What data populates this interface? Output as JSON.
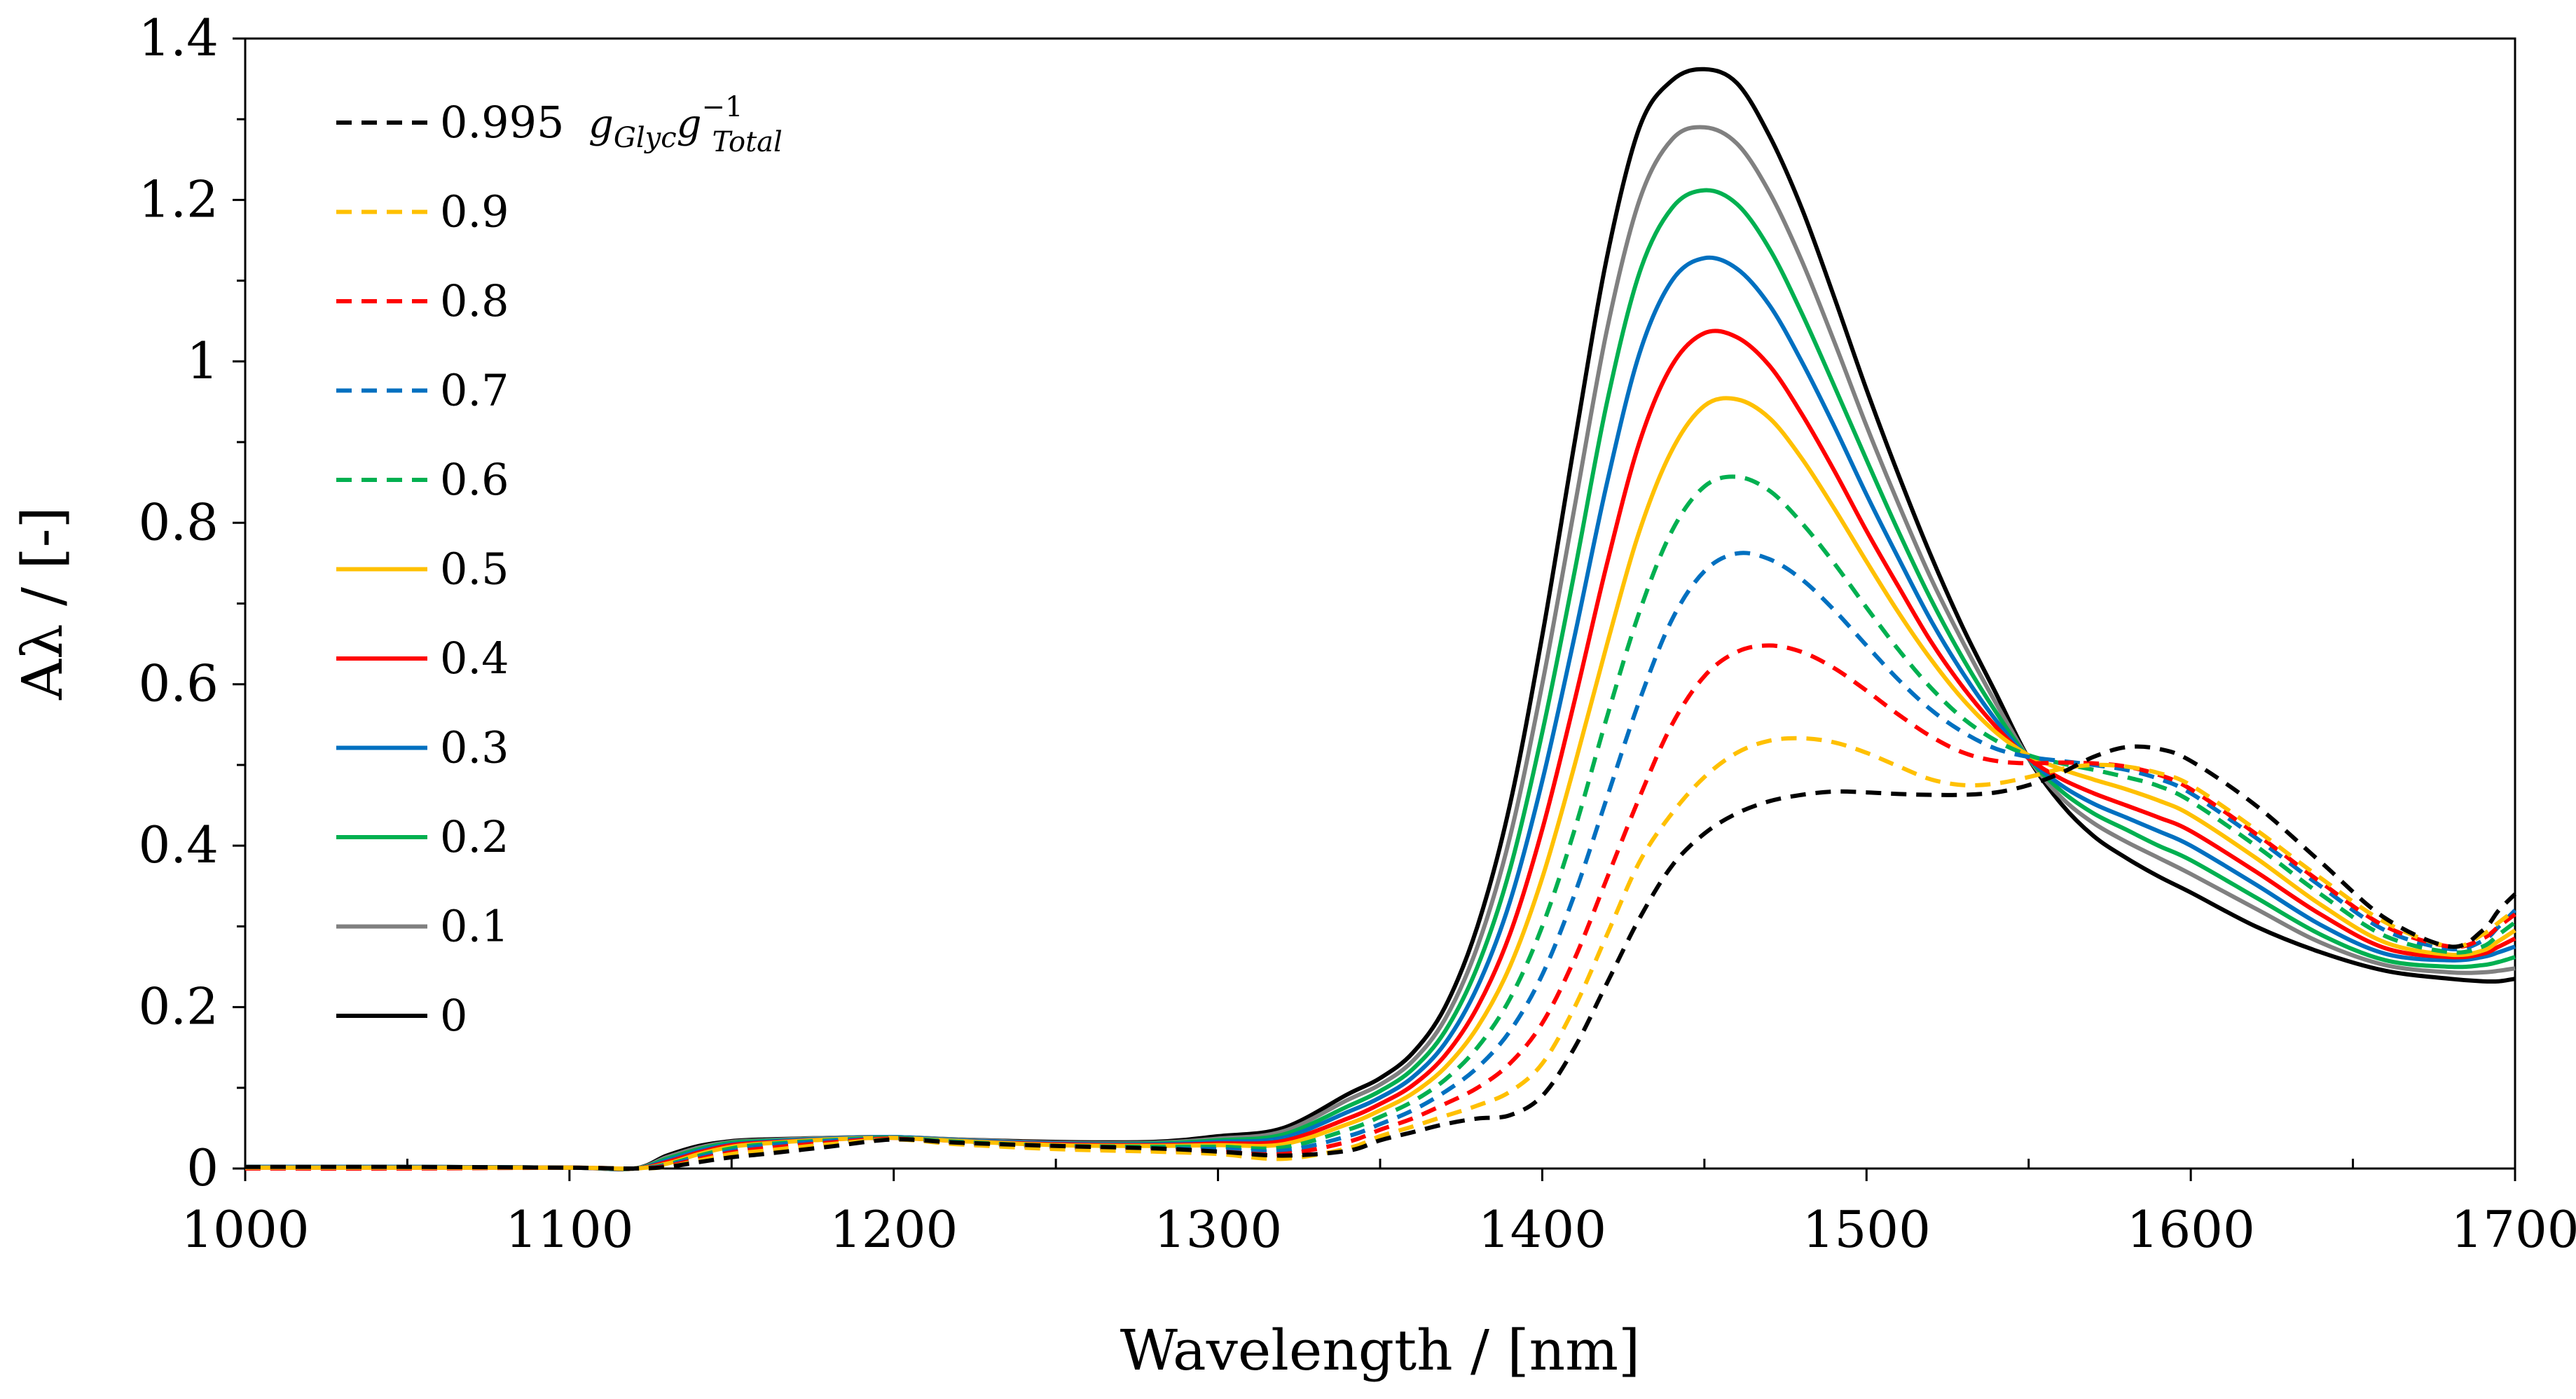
{
  "chart_data": {
    "type": "line",
    "xlabel": "Wavelength / [nm]",
    "ylabel": "Aλ / [-]",
    "xlim": [
      1000,
      1700
    ],
    "ylim": [
      0,
      1.4
    ],
    "x_ticks": [
      "1000",
      "1100",
      "1200",
      "1300",
      "1400",
      "1500",
      "1600",
      "1700"
    ],
    "y_ticks": [
      "0",
      "0.2",
      "0.4",
      "0.6",
      "0.8",
      "1",
      "1.2",
      "1.4"
    ],
    "grid": false,
    "legend_position": "top-left",
    "legend_unit": "g_Glyc g_Total^-1",
    "x": [
      1000,
      1050,
      1100,
      1120,
      1130,
      1140,
      1150,
      1160,
      1180,
      1200,
      1220,
      1250,
      1280,
      1300,
      1320,
      1340,
      1350,
      1360,
      1370,
      1380,
      1390,
      1400,
      1410,
      1420,
      1430,
      1440,
      1450,
      1460,
      1470,
      1480,
      1490,
      1500,
      1510,
      1520,
      1530,
      1540,
      1550,
      1560,
      1570,
      1580,
      1590,
      1600,
      1620,
      1640,
      1660,
      1680,
      1690,
      1695,
      1700
    ],
    "series": [
      {
        "name": "0.995",
        "color": "#000000",
        "dashed": true,
        "values": [
          0.002,
          0.002,
          0.001,
          0.0,
          0.002,
          0.008,
          0.014,
          0.018,
          0.027,
          0.036,
          0.032,
          0.028,
          0.025,
          0.021,
          0.016,
          0.022,
          0.035,
          0.045,
          0.055,
          0.062,
          0.066,
          0.09,
          0.15,
          0.23,
          0.31,
          0.375,
          0.415,
          0.44,
          0.455,
          0.463,
          0.467,
          0.466,
          0.464,
          0.463,
          0.463,
          0.466,
          0.475,
          0.49,
          0.51,
          0.522,
          0.52,
          0.505,
          0.45,
          0.38,
          0.31,
          0.275,
          0.295,
          0.32,
          0.34
        ]
      },
      {
        "name": "0.9",
        "color": "#FFC000",
        "dashed": true,
        "values": [
          0.001,
          0.001,
          0.001,
          0.0,
          0.002,
          0.01,
          0.018,
          0.022,
          0.03,
          0.036,
          0.03,
          0.024,
          0.021,
          0.018,
          0.012,
          0.025,
          0.04,
          0.052,
          0.065,
          0.078,
          0.095,
          0.13,
          0.2,
          0.29,
          0.38,
          0.44,
          0.485,
          0.515,
          0.53,
          0.533,
          0.528,
          0.515,
          0.498,
          0.482,
          0.475,
          0.477,
          0.485,
          0.495,
          0.5,
          0.498,
          0.49,
          0.475,
          0.42,
          0.36,
          0.305,
          0.275,
          0.29,
          0.305,
          0.32
        ]
      },
      {
        "name": "0.8",
        "color": "#FF0000",
        "dashed": true,
        "values": [
          0.0,
          0.0,
          0.001,
          0.0,
          0.003,
          0.012,
          0.02,
          0.025,
          0.032,
          0.037,
          0.031,
          0.026,
          0.023,
          0.021,
          0.018,
          0.033,
          0.048,
          0.062,
          0.08,
          0.1,
          0.13,
          0.18,
          0.26,
          0.36,
          0.46,
          0.55,
          0.61,
          0.64,
          0.648,
          0.64,
          0.62,
          0.592,
          0.562,
          0.535,
          0.515,
          0.505,
          0.502,
          0.503,
          0.502,
          0.498,
          0.488,
          0.47,
          0.415,
          0.355,
          0.3,
          0.275,
          0.285,
          0.3,
          0.315
        ]
      },
      {
        "name": "0.7",
        "color": "#0070C0",
        "dashed": true,
        "values": [
          0.001,
          0.001,
          0.001,
          0.0,
          0.004,
          0.014,
          0.022,
          0.028,
          0.034,
          0.037,
          0.032,
          0.027,
          0.025,
          0.024,
          0.022,
          0.04,
          0.055,
          0.072,
          0.095,
          0.125,
          0.17,
          0.24,
          0.34,
          0.46,
          0.58,
          0.68,
          0.74,
          0.762,
          0.755,
          0.73,
          0.692,
          0.648,
          0.605,
          0.568,
          0.54,
          0.52,
          0.51,
          0.505,
          0.5,
          0.494,
          0.483,
          0.465,
          0.41,
          0.35,
          0.295,
          0.272,
          0.282,
          0.3,
          0.32
        ]
      },
      {
        "name": "0.6",
        "color": "#00B050",
        "dashed": true,
        "values": [
          0.001,
          0.001,
          0.001,
          0.0,
          0.005,
          0.016,
          0.025,
          0.03,
          0.035,
          0.038,
          0.033,
          0.028,
          0.027,
          0.027,
          0.026,
          0.048,
          0.064,
          0.083,
          0.11,
          0.15,
          0.21,
          0.3,
          0.42,
          0.56,
          0.69,
          0.79,
          0.845,
          0.857,
          0.84,
          0.8,
          0.75,
          0.695,
          0.642,
          0.595,
          0.557,
          0.53,
          0.512,
          0.502,
          0.494,
          0.485,
          0.474,
          0.455,
          0.4,
          0.34,
          0.288,
          0.268,
          0.275,
          0.29,
          0.305
        ]
      },
      {
        "name": "0.5",
        "color": "#FFC000",
        "dashed": false,
        "values": [
          0.001,
          0.001,
          0.001,
          0.0,
          0.006,
          0.018,
          0.027,
          0.031,
          0.036,
          0.038,
          0.034,
          0.029,
          0.028,
          0.029,
          0.03,
          0.055,
          0.072,
          0.093,
          0.125,
          0.175,
          0.25,
          0.36,
          0.5,
          0.65,
          0.79,
          0.89,
          0.945,
          0.953,
          0.93,
          0.88,
          0.818,
          0.752,
          0.688,
          0.63,
          0.58,
          0.54,
          0.512,
          0.495,
          0.482,
          0.47,
          0.456,
          0.438,
          0.385,
          0.327,
          0.28,
          0.265,
          0.27,
          0.282,
          0.295
        ]
      },
      {
        "name": "0.4",
        "color": "#FF0000",
        "dashed": false,
        "values": [
          0.001,
          0.001,
          0.001,
          0.0,
          0.008,
          0.02,
          0.029,
          0.032,
          0.036,
          0.038,
          0.034,
          0.03,
          0.029,
          0.031,
          0.034,
          0.062,
          0.08,
          0.103,
          0.14,
          0.2,
          0.29,
          0.42,
          0.58,
          0.75,
          0.9,
          0.995,
          1.035,
          1.03,
          0.995,
          0.935,
          0.865,
          0.79,
          0.72,
          0.652,
          0.595,
          0.547,
          0.508,
          0.483,
          0.465,
          0.45,
          0.435,
          0.418,
          0.368,
          0.315,
          0.273,
          0.262,
          0.266,
          0.275,
          0.285
        ]
      },
      {
        "name": "0.3",
        "color": "#0070C0",
        "dashed": false,
        "values": [
          0.002,
          0.002,
          0.001,
          0.0,
          0.01,
          0.022,
          0.03,
          0.033,
          0.037,
          0.039,
          0.035,
          0.031,
          0.03,
          0.033,
          0.038,
          0.07,
          0.088,
          0.113,
          0.155,
          0.225,
          0.33,
          0.48,
          0.66,
          0.85,
          1.01,
          1.1,
          1.128,
          1.115,
          1.07,
          1.0,
          0.92,
          0.835,
          0.755,
          0.678,
          0.612,
          0.555,
          0.508,
          0.475,
          0.452,
          0.435,
          0.418,
          0.4,
          0.352,
          0.302,
          0.266,
          0.258,
          0.262,
          0.268,
          0.275
        ]
      },
      {
        "name": "0.2",
        "color": "#00B050",
        "dashed": false,
        "values": [
          0.002,
          0.002,
          0.001,
          0.0,
          0.012,
          0.024,
          0.032,
          0.034,
          0.037,
          0.039,
          0.035,
          0.031,
          0.031,
          0.035,
          0.042,
          0.077,
          0.096,
          0.123,
          0.17,
          0.25,
          0.37,
          0.54,
          0.74,
          0.95,
          1.11,
          1.19,
          1.212,
          1.195,
          1.14,
          1.06,
          0.97,
          0.878,
          0.788,
          0.704,
          0.63,
          0.565,
          0.508,
          0.468,
          0.44,
          0.42,
          0.4,
          0.382,
          0.336,
          0.29,
          0.258,
          0.25,
          0.252,
          0.256,
          0.262
        ]
      },
      {
        "name": "0.1",
        "color": "#808080",
        "dashed": false,
        "values": [
          0.002,
          0.002,
          0.001,
          0.0,
          0.014,
          0.026,
          0.033,
          0.035,
          0.038,
          0.039,
          0.036,
          0.032,
          0.032,
          0.037,
          0.046,
          0.085,
          0.104,
          0.133,
          0.185,
          0.275,
          0.41,
          0.6,
          0.82,
          1.04,
          1.2,
          1.275,
          1.29,
          1.27,
          1.21,
          1.125,
          1.025,
          0.92,
          0.822,
          0.73,
          0.65,
          0.576,
          0.508,
          0.46,
          0.428,
          0.405,
          0.385,
          0.365,
          0.322,
          0.28,
          0.252,
          0.243,
          0.243,
          0.245,
          0.248
        ]
      },
      {
        "name": "0",
        "color": "#000000",
        "dashed": false,
        "values": [
          0.002,
          0.002,
          0.001,
          0.0,
          0.016,
          0.028,
          0.034,
          0.036,
          0.038,
          0.039,
          0.036,
          0.033,
          0.033,
          0.04,
          0.05,
          0.092,
          0.112,
          0.143,
          0.2,
          0.3,
          0.45,
          0.66,
          0.9,
          1.13,
          1.29,
          1.348,
          1.362,
          1.345,
          1.28,
          1.19,
          1.08,
          0.965,
          0.858,
          0.758,
          0.668,
          0.588,
          0.508,
          0.452,
          0.412,
          0.385,
          0.362,
          0.342,
          0.3,
          0.268,
          0.245,
          0.235,
          0.232,
          0.232,
          0.235
        ]
      }
    ]
  }
}
